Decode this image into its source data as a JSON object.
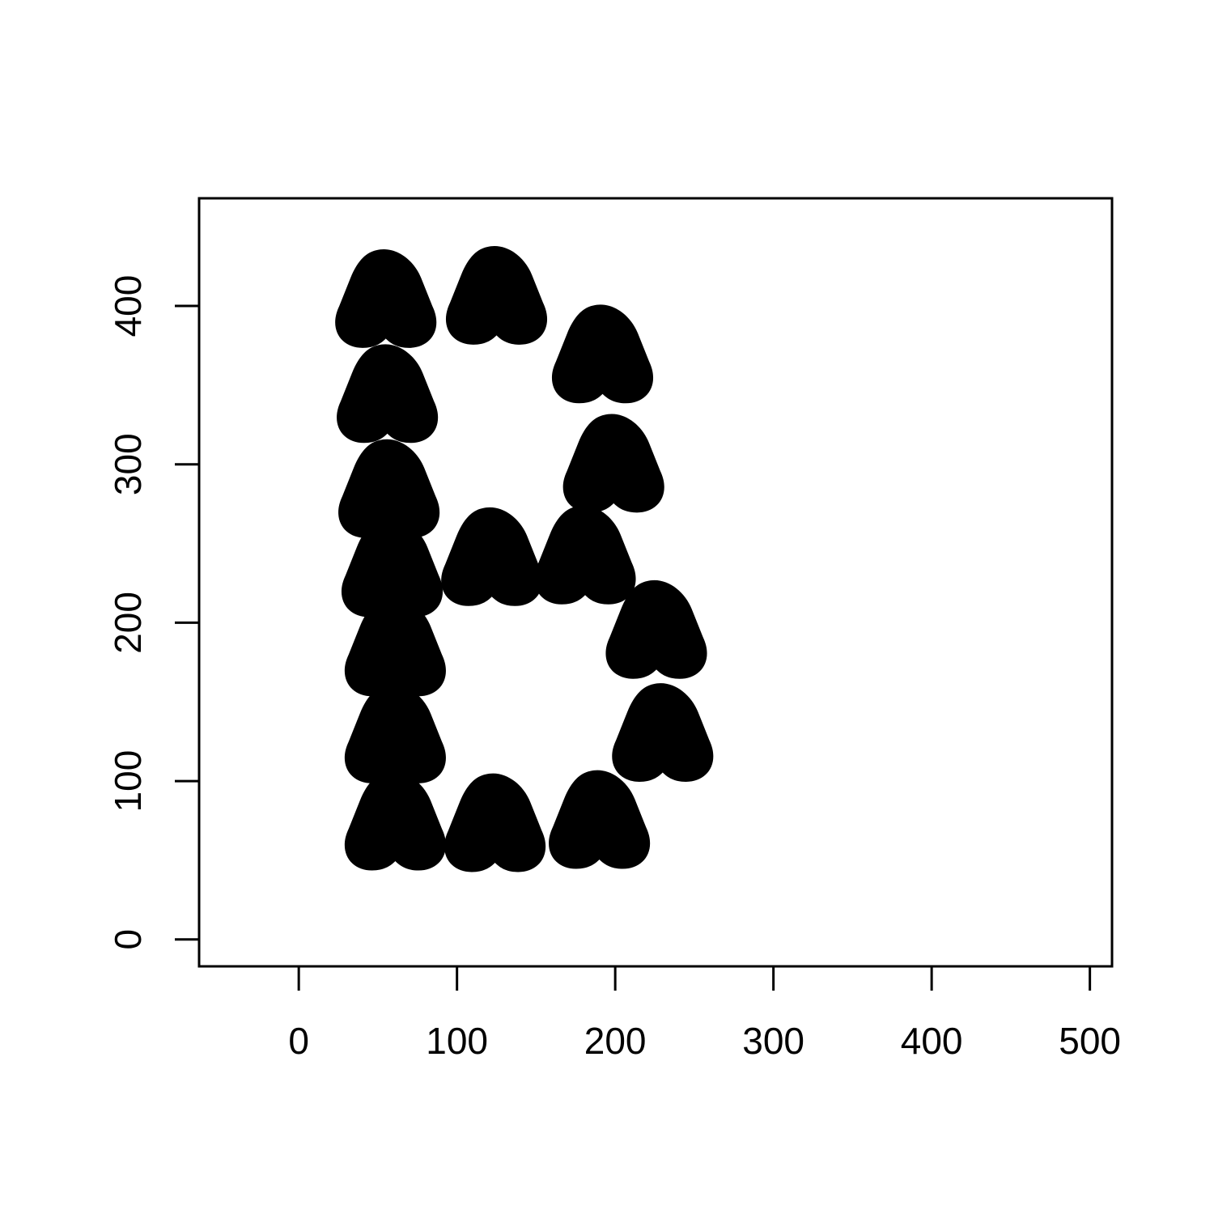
{
  "chart_data": {
    "type": "scatter",
    "title": "",
    "xlabel": "",
    "ylabel": "",
    "xlim": [
      -63,
      514
    ],
    "ylim": [
      -17,
      468
    ],
    "x_ticks": [
      0,
      100,
      200,
      300,
      400,
      500
    ],
    "y_ticks": [
      0,
      100,
      200,
      300,
      400
    ],
    "x_tick_labels": [
      "0",
      "100",
      "200",
      "300",
      "400",
      "500"
    ],
    "y_tick_labels": [
      "0",
      "100",
      "200",
      "300",
      "400"
    ],
    "grid": false,
    "legend": "none",
    "marker": "pear-shaped filled glyph",
    "marker_color": "#000000",
    "series": [
      {
        "points": [
          {
            "x": 55,
            "y": 400
          },
          {
            "x": 56,
            "y": 340
          },
          {
            "x": 57,
            "y": 280
          },
          {
            "x": 59,
            "y": 230
          },
          {
            "x": 61,
            "y": 180
          },
          {
            "x": 61,
            "y": 125
          },
          {
            "x": 61,
            "y": 70
          },
          {
            "x": 125,
            "y": 402
          },
          {
            "x": 122,
            "y": 237
          },
          {
            "x": 124,
            "y": 69
          },
          {
            "x": 192,
            "y": 365
          },
          {
            "x": 199,
            "y": 296
          },
          {
            "x": 181,
            "y": 238
          },
          {
            "x": 226,
            "y": 191
          },
          {
            "x": 230,
            "y": 126
          },
          {
            "x": 190,
            "y": 71
          }
        ]
      }
    ]
  }
}
